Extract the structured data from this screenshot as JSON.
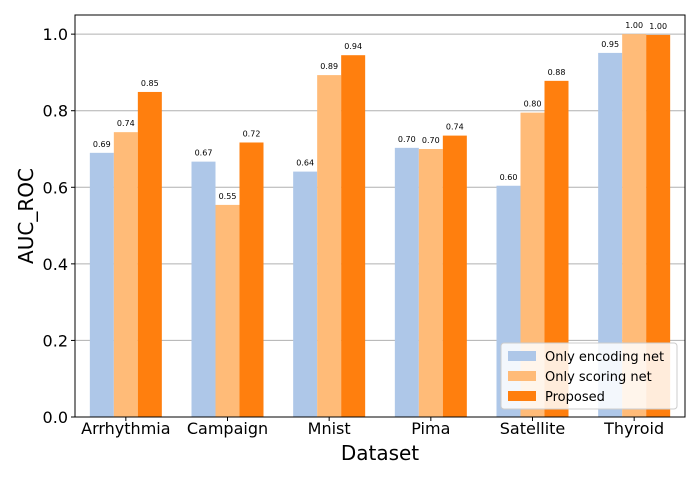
{
  "chart_data": {
    "type": "bar",
    "title": "",
    "xlabel": "Dataset",
    "ylabel": "AUC_ROC",
    "categories": [
      "Arrhythmia",
      "Campaign",
      "Mnist",
      "Pima",
      "Satellite",
      "Thyroid"
    ],
    "series": [
      {
        "name": "Only encoding net",
        "color": "#aec7e8",
        "values": [
          0.69,
          0.667,
          0.641,
          0.703,
          0.604,
          0.951
        ],
        "labels": [
          "0.69",
          "0.67",
          "0.64",
          "0.70",
          "0.60",
          "0.95"
        ]
      },
      {
        "name": "Only scoring net",
        "color": "#ffbb78",
        "values": [
          0.744,
          0.554,
          0.893,
          0.7,
          0.795,
          1.0
        ],
        "labels": [
          "0.74",
          "0.55",
          "0.89",
          "0.70",
          "0.80",
          "1.00"
        ]
      },
      {
        "name": "Proposed",
        "color": "#ff7f0e",
        "values": [
          0.849,
          0.717,
          0.945,
          0.735,
          0.878,
          0.998
        ],
        "labels": [
          "0.85",
          "0.72",
          "0.94",
          "0.74",
          "0.88",
          "1.00"
        ]
      }
    ],
    "ylim": [
      0,
      1.05
    ],
    "yticks": [
      "0.0",
      "0.2",
      "0.4",
      "0.6",
      "0.8",
      "1.0"
    ],
    "ytick_values": [
      0,
      0.2,
      0.4,
      0.6,
      0.8,
      1.0
    ],
    "grid": "horizontal",
    "legend": "lower-right"
  }
}
